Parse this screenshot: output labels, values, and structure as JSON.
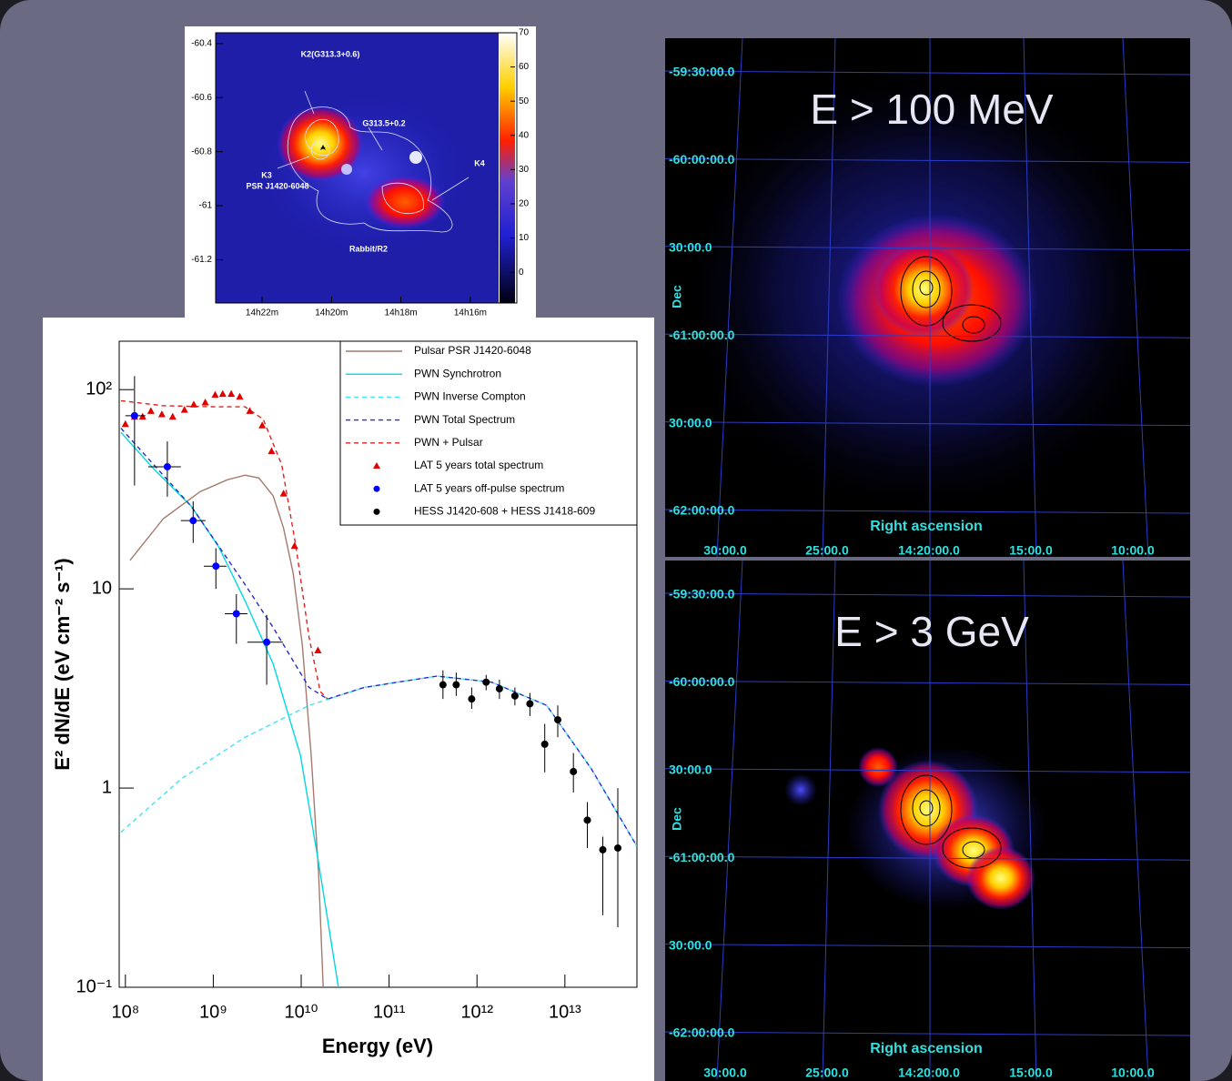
{
  "chart_data": {
    "type": "line",
    "xscale": "log",
    "yscale": "log",
    "xlabel": "Energy (eV)",
    "ylabel": "E² dN/dE (eV cm⁻² s⁻¹)",
    "xlim": [
      85000000,
      66000000000000
    ],
    "ylim": [
      0.1,
      175
    ],
    "xticks": [
      {
        "value": 100000000,
        "label": "10⁸"
      },
      {
        "value": 1000000000,
        "label": "10⁹"
      },
      {
        "value": 10000000000,
        "label": "10¹⁰"
      },
      {
        "value": 100000000000,
        "label": "10¹¹"
      },
      {
        "value": 1000000000000,
        "label": "10¹²"
      },
      {
        "value": 10000000000000,
        "label": "10¹³"
      }
    ],
    "yticks": [
      {
        "value": 0.1,
        "label": "10⁻¹"
      },
      1,
      10,
      {
        "value": 100,
        "label": "10²"
      }
    ],
    "series": [
      {
        "name": "Pulsar PSR J1420-6048",
        "color": "#a47a6e",
        "mode": "line",
        "dash": "solid",
        "x": [
          113000000,
          270000000,
          710000000,
          1450000000,
          2300000000,
          3300000000,
          4800000000,
          6300000000,
          8100000000,
          10300000000,
          13000000000,
          15800000000,
          17800000000
        ],
        "values": [
          13.9,
          22.5,
          30.8,
          35.3,
          37.2,
          36,
          29.3,
          20.2,
          12,
          5.2,
          1.46,
          0.37,
          0.1
        ]
      },
      {
        "name": "PWN Synchrotron",
        "color": "#00d8e0",
        "mode": "line",
        "dash": "solid",
        "x": [
          89000000,
          210000000,
          560000000,
          1140000000,
          2300000000,
          4800000000,
          9800000000,
          15800000000,
          26500000000
        ],
        "values": [
          61,
          40,
          26,
          16.4,
          8.7,
          4.2,
          1.46,
          0.42,
          0.1
        ]
      },
      {
        "name": "PWN Inverse Compton",
        "color": "#40e4f0",
        "mode": "line",
        "dash": "dashed",
        "x": [
          89000000,
          440000000,
          2300000000,
          12300000000,
          52000000000,
          350000000000,
          1470000000000,
          6200000000000,
          20000000000000,
          66000000000000
        ],
        "values": [
          0.6,
          1.12,
          1.8,
          2.6,
          3.2,
          3.65,
          3.4,
          2.6,
          1.25,
          0.51
        ]
      },
      {
        "name": "PWN Total Spectrum",
        "color": "#2a2ad0",
        "mode": "line",
        "dash": "dashed",
        "x": [
          89000000,
          560000000,
          2300000000,
          4800000000,
          12300000000,
          20000000000,
          52000000000,
          350000000000,
          1470000000000,
          6200000000000,
          20000000000000,
          66000000000000
        ],
        "values": [
          64,
          26,
          10.5,
          6.4,
          3.2,
          2.8,
          3.2,
          3.65,
          3.4,
          2.6,
          1.25,
          0.51
        ]
      },
      {
        "name": "PWN + Pulsar",
        "color": "#e02020",
        "mode": "line",
        "dash": "dashed",
        "x": [
          89000000,
          270000000,
          1050000000,
          2300000000,
          3700000000,
          6000000000,
          8700000000,
          12300000000,
          16500000000,
          20000000000
        ],
        "values": [
          88,
          83,
          82,
          82,
          71,
          42,
          16.4,
          5.7,
          3.05,
          2.8
        ]
      },
      {
        "name": "LAT 5 years total spectrum",
        "color": "#e00000",
        "mode": "points",
        "marker": "triangle",
        "x": [
          100000000,
          127000000,
          157000000,
          195000000,
          260000000,
          345000000,
          470000000,
          600000000,
          810000000,
          1050000000,
          1280000000,
          1600000000,
          2000000000,
          2600000000,
          3600000000,
          4600000000,
          6300000000,
          8400000000,
          15500000000
        ],
        "values": [
          67,
          73,
          73,
          78,
          75,
          73,
          79,
          84,
          86,
          94,
          95,
          95,
          92,
          78,
          66,
          49,
          30,
          16.4,
          4.9
        ]
      },
      {
        "name": "LAT 5 years off-pulse spectrum",
        "color": "#0000ff",
        "mode": "points",
        "marker": "circle",
        "x": [
          127000000,
          300000000,
          590000000,
          1070000000,
          1830000000,
          4050000000
        ],
        "values": [
          74,
          41,
          22,
          13,
          7.5,
          5.4
        ],
        "ylow": [
          33,
          29,
          17,
          10,
          5.3,
          3.3
        ],
        "yhigh": [
          117,
          55,
          27.5,
          16,
          9.4,
          7.4
        ],
        "xlow": [
          100000000,
          182000000,
          428000000,
          780000000,
          1350000000,
          2440000000
        ],
        "xhigh": [
          169000000,
          428000000,
          815000000,
          1410000000,
          2440000000,
          6200000000
        ]
      },
      {
        "name": "HESS J1420-608 + HESS J1418-609",
        "color": "#000000",
        "mode": "points",
        "marker": "circle",
        "x": [
          410000000000,
          580000000000,
          870000000000,
          1270000000000,
          1800000000000,
          2700000000000,
          4000000000000,
          5900000000000,
          8300000000000,
          12500000000000,
          18000000000000,
          27000000000000,
          40000000000000
        ],
        "values": [
          3.3,
          3.3,
          2.8,
          3.4,
          3.15,
          2.9,
          2.65,
          1.66,
          2.2,
          1.21,
          0.69,
          0.49,
          0.5
        ],
        "ylow": [
          2.8,
          2.9,
          2.5,
          3.1,
          2.8,
          2.6,
          2.3,
          1.2,
          1.8,
          0.95,
          0.5,
          0.23,
          0.2
        ],
        "yhigh": [
          3.9,
          3.8,
          3.2,
          3.7,
          3.5,
          3.2,
          3.0,
          2.1,
          2.6,
          1.5,
          0.85,
          0.57,
          1.0
        ]
      }
    ]
  },
  "radio_map": {
    "ylim": [
      -61.36,
      -60.36
    ],
    "yticks": [
      -60.4,
      -60.6,
      -60.8,
      -61,
      -61.2
    ],
    "xticks": [
      "14h22m",
      "14h20m",
      "14h18m",
      "14h16m"
    ],
    "colorbar_lim": [
      -9,
      70
    ],
    "colorbar_ticks": [
      70,
      60,
      50,
      40,
      30,
      20,
      10,
      0
    ],
    "annotations": [
      "K2(G313.3+0.6)",
      "G313.5+0.2",
      "K3",
      "PSR J1420-6048",
      "K4",
      "Rabbit/R2"
    ]
  },
  "sky_maps": [
    {
      "title": "E > 100 MeV",
      "xlabel": "Right ascension",
      "ylabel": "Dec",
      "yticks": [
        "-59:30:00.0",
        "-60:00:00.0",
        "30:00.0",
        "-61:00:00.0",
        "30:00.0",
        "-62:00:00.0"
      ],
      "xticks": [
        "30:00.0",
        "25:00.0",
        "14:20:00.0",
        "15:00.0",
        "10:00.0"
      ]
    },
    {
      "title": "E > 3 GeV",
      "xlabel": "Right ascension",
      "ylabel": "Dec",
      "yticks": [
        "-59:30:00.0",
        "-60:00:00.0",
        "30:00.0",
        "-61:00:00.0",
        "30:00.0",
        "-62:00:00.0"
      ],
      "xticks": [
        "30:00.0",
        "25:00.0",
        "14:20:00.0",
        "15:00.0",
        "10:00.0"
      ]
    }
  ]
}
